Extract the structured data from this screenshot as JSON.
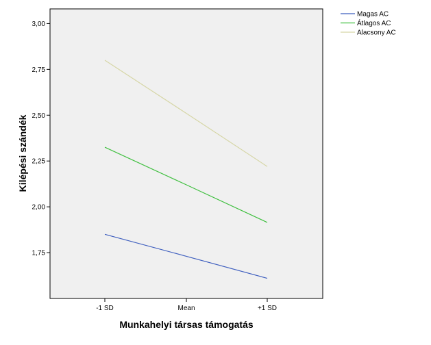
{
  "chart_data": {
    "type": "line",
    "categories": [
      "-1 SD",
      "Mean",
      "+1 SD"
    ],
    "series": [
      {
        "name": "Magas AC",
        "values": [
          1.85,
          1.73,
          1.61
        ],
        "color": "#3f5fbf"
      },
      {
        "name": "Átlagos AC",
        "values": [
          2.325,
          2.12,
          1.915
        ],
        "color": "#3fbf3f"
      },
      {
        "name": "Alacsony AC",
        "values": [
          2.8,
          2.51,
          2.22
        ],
        "color": "#d6d6a6"
      }
    ],
    "y_ticks": [
      {
        "value": 1.75,
        "label": "1,75"
      },
      {
        "value": 2.0,
        "label": "2,00"
      },
      {
        "value": 2.25,
        "label": "2,25"
      },
      {
        "value": 2.5,
        "label": "2,50"
      },
      {
        "value": 2.75,
        "label": "2,75"
      },
      {
        "value": 3.0,
        "label": "3,00"
      }
    ],
    "ylim": [
      1.5,
      3.08
    ],
    "xlabel": "Munkahelyi társas támogatás",
    "ylabel": "Kilépési szándék",
    "grid": false,
    "legend_position": "top-right",
    "plot_background": "#f0f0f0"
  }
}
